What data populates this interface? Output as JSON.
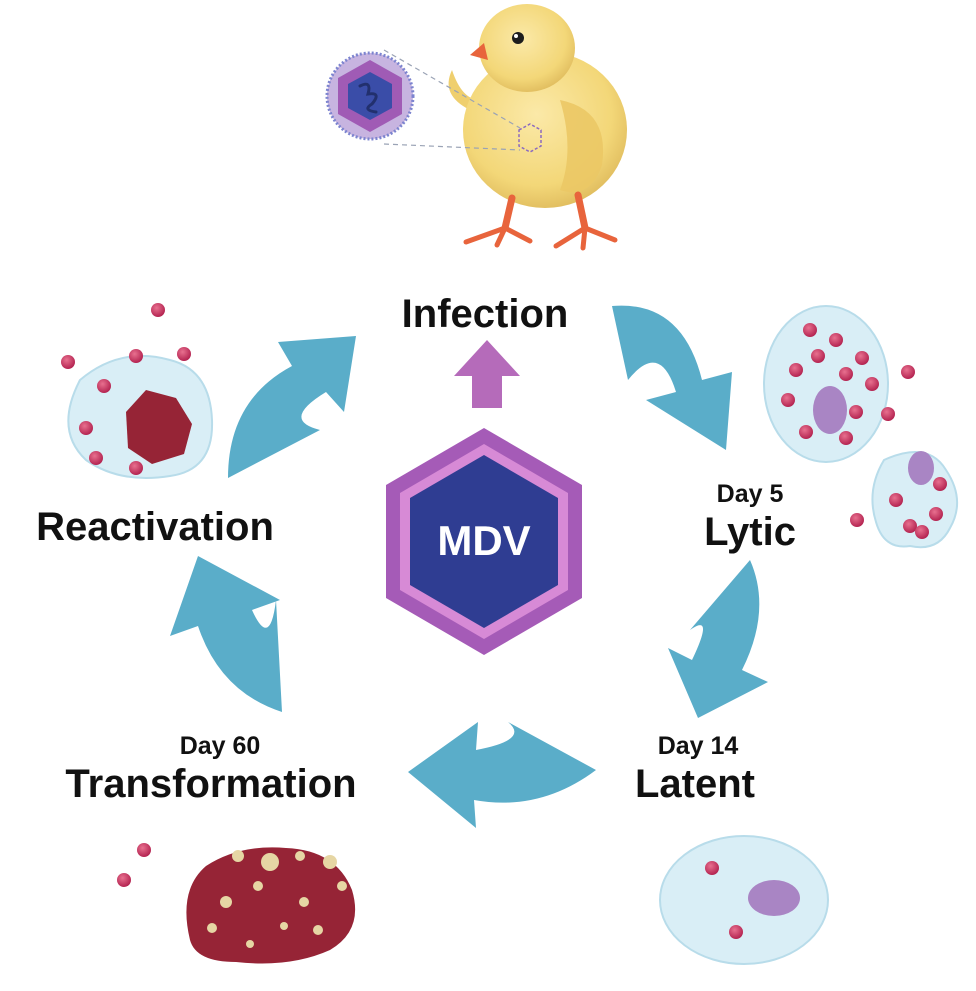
{
  "hub": {
    "label": "MDV"
  },
  "stages": {
    "infection": {
      "label": "Infection"
    },
    "lytic": {
      "day": "Day 5",
      "label": "Lytic"
    },
    "latent": {
      "day": "Day 14",
      "label": "Latent"
    },
    "transformation": {
      "day": "Day 60",
      "label": "Transformation"
    },
    "reactivation": {
      "label": "Reactivation"
    }
  },
  "colors": {
    "arrow": "#5AADC9",
    "hub_outer": "#A55BB7",
    "hub_inner": "#2F3D92",
    "cell_fill": "#D9EEF6",
    "virion": "#C8325E",
    "nucleus": "#A985C4",
    "tumor": "#962436",
    "chick": "#F3D778",
    "chick_legs": "#E8643C"
  },
  "icons": {
    "chick": "chick-illustration",
    "virion": "virus-particle-icon",
    "cycle_arrow": "curved-arrow-icon",
    "up_arrow": "arrow-up-icon"
  }
}
